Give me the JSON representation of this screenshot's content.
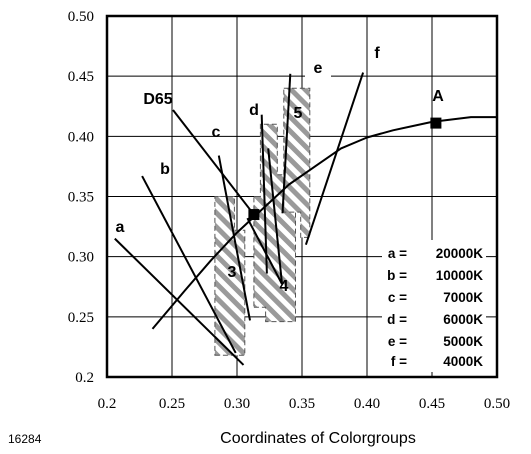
{
  "chart_data": {
    "type": "line",
    "figure_id": "16284",
    "xlabel": "Coordinates of Colorgroups",
    "ylabel": "",
    "xlim": [
      0.2,
      0.5
    ],
    "ylim": [
      0.2,
      0.5
    ],
    "x_ticks": [
      "0.2",
      "0.25",
      "0.30",
      "0.35",
      "0.40",
      "0.45",
      "0.50"
    ],
    "y_ticks": [
      "0.2",
      "0.25",
      "0.30",
      "0.35",
      "0.40",
      "0.45",
      "0.50"
    ],
    "grid": true,
    "series": [
      {
        "type": "line",
        "points": [
          [
            0.235,
            0.24
          ],
          [
            0.26,
            0.272
          ],
          [
            0.28,
            0.297
          ],
          [
            0.3,
            0.32
          ],
          [
            0.32,
            0.34
          ],
          [
            0.34,
            0.36
          ],
          [
            0.36,
            0.375
          ],
          [
            0.38,
            0.39
          ],
          [
            0.4,
            0.399
          ],
          [
            0.42,
            0.405
          ],
          [
            0.45,
            0.412
          ],
          [
            0.48,
            0.416
          ],
          [
            0.5,
            0.416
          ]
        ]
      }
    ],
    "points": [
      {
        "label": "D65",
        "x": 0.313,
        "y": 0.335
      },
      {
        "label": "A",
        "x": 0.453,
        "y": 0.411
      }
    ],
    "groups": [
      {
        "label": "3",
        "polygon": [
          [
            0.283,
            0.218
          ],
          [
            0.306,
            0.218
          ],
          [
            0.306,
            0.322
          ],
          [
            0.298,
            0.322
          ],
          [
            0.298,
            0.35
          ],
          [
            0.283,
            0.35
          ]
        ]
      },
      {
        "label": "4",
        "polygon": [
          [
            0.313,
            0.258
          ],
          [
            0.322,
            0.258
          ],
          [
            0.322,
            0.246
          ],
          [
            0.345,
            0.246
          ],
          [
            0.345,
            0.338
          ],
          [
            0.338,
            0.338
          ],
          [
            0.338,
            0.368
          ],
          [
            0.331,
            0.368
          ],
          [
            0.331,
            0.41
          ],
          [
            0.318,
            0.41
          ],
          [
            0.318,
            0.35
          ],
          [
            0.313,
            0.35
          ]
        ]
      },
      {
        "label": "5",
        "polygon": [
          [
            0.336,
            0.44
          ],
          [
            0.356,
            0.44
          ],
          [
            0.356,
            0.316
          ],
          [
            0.349,
            0.316
          ],
          [
            0.349,
            0.337
          ],
          [
            0.336,
            0.337
          ]
        ]
      }
    ],
    "annotations": [
      {
        "label": "a",
        "x": 0.206,
        "y": 0.315,
        "tx": 0.305,
        "ty": 0.21
      },
      {
        "label": "b",
        "x": 0.227,
        "y": 0.367,
        "tx": 0.299,
        "ty": 0.22
      },
      {
        "label": "c",
        "x": 0.286,
        "y": 0.384,
        "tx": 0.31,
        "ty": 0.247
      },
      {
        "label": "d",
        "x": 0.319,
        "y": 0.418,
        "tx": 0.323,
        "ty": 0.286
      },
      {
        "label": "e",
        "x": 0.341,
        "y": 0.452,
        "tx": 0.335,
        "ty": 0.336
      },
      {
        "label": "f",
        "x": 0.397,
        "y": 0.453,
        "tx": 0.353,
        "ty": 0.31
      }
    ],
    "label_texts": {
      "a": "a",
      "b": "b",
      "c": "c",
      "d": "d",
      "e": "e",
      "f": "f",
      "D65": "D65",
      "A": "A",
      "3": "3",
      "4": "4",
      "5": "5"
    },
    "legend": [
      {
        "key": "a =",
        "value": "20000K"
      },
      {
        "key": "b =",
        "value": "10000K"
      },
      {
        "key": "c =",
        "value": "7000K"
      },
      {
        "key": "d =",
        "value": "6000K"
      },
      {
        "key": "e =",
        "value": "5000K"
      },
      {
        "key": "f =",
        "value": "4000K"
      }
    ],
    "colors": {
      "ink": "#000000",
      "hatch": "#888888",
      "background": "#ffffff"
    }
  }
}
